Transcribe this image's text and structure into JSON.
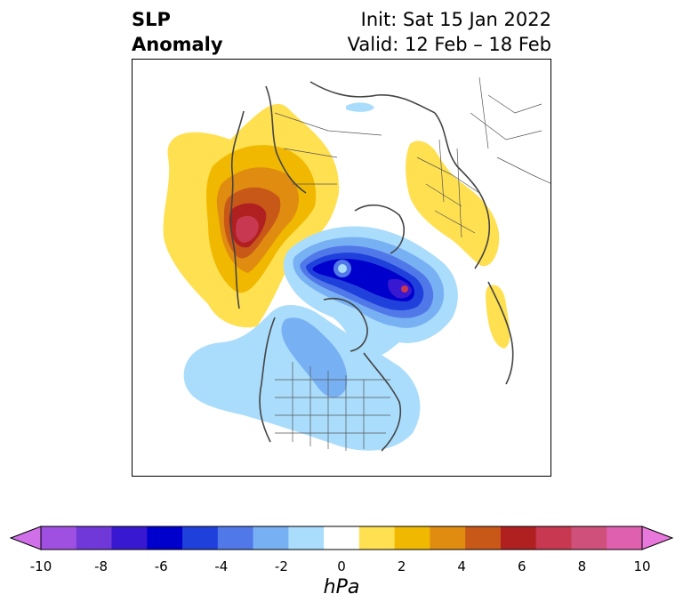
{
  "header": {
    "variable_line1": "SLP",
    "variable_line2": "Anomaly",
    "init_label": "Init: Sat 15 Jan 2022",
    "valid_label": "Valid: 12 Feb – 18 Feb"
  },
  "colorbar": {
    "unit": "hPa",
    "ticks": [
      "-10",
      "-8",
      "-6",
      "-4",
      "-2",
      "0",
      "2",
      "4",
      "6",
      "8",
      "10"
    ],
    "colors": [
      "#d070e8",
      "#a050e0",
      "#7038d8",
      "#3818d0",
      "#0000cc",
      "#2040dc",
      "#5078e8",
      "#78b0f4",
      "#aadcfc",
      "#ffffff",
      "#ffe050",
      "#f0b800",
      "#e08c10",
      "#c85818",
      "#b02020",
      "#c83850",
      "#d0507c",
      "#e060b0",
      "#e878dc"
    ]
  },
  "map": {
    "colors": {
      "pos1": "#ffe050",
      "pos2": "#f0b800",
      "pos3": "#e08c10",
      "pos4": "#c85818",
      "pos5": "#b02020",
      "pos6": "#c83850",
      "neg1": "#aadcfc",
      "neg2": "#78b0f4",
      "neg3": "#5078e8",
      "neg4": "#2040dc",
      "neg5": "#0000cc",
      "neg6": "#3818d0"
    }
  }
}
